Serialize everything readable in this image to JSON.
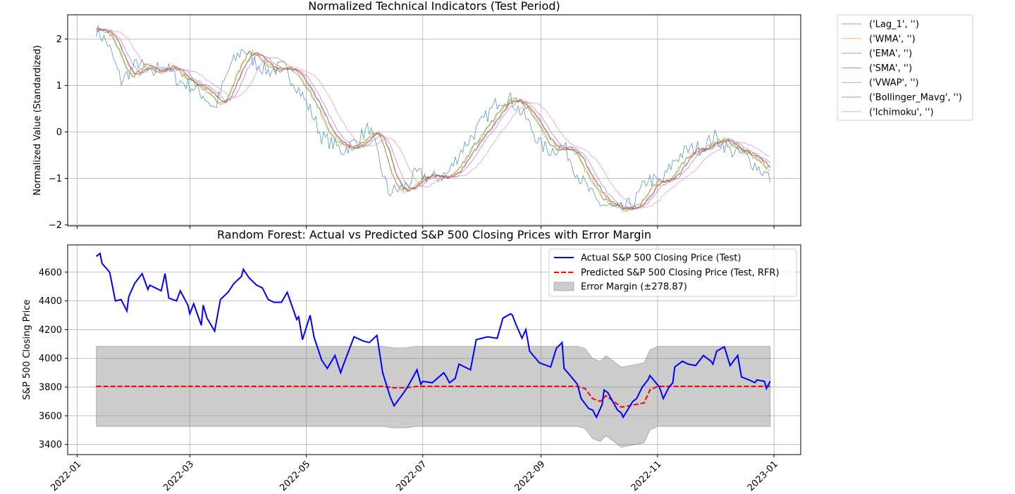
{
  "chart_data": [
    {
      "type": "line",
      "title": "Normalized Technical Indicators (Test Period)",
      "xlabel": "",
      "ylabel": "Normalized Value (Standardized)",
      "xlim": [
        "2021-12-27",
        "2023-01-15"
      ],
      "ylim": [
        -2.02,
        2.52
      ],
      "yticks": [
        -2,
        -1,
        0,
        1,
        2
      ],
      "ytick_labels": [
        "−2",
        "−1",
        "0",
        "1",
        "2"
      ],
      "grid": true,
      "legend_placement": "outside-top-right",
      "series": [
        {
          "name": "('Lag_1', '')",
          "color": "#1f77b4",
          "lag": 0,
          "noise": 0.95,
          "x": [
            "2022-01-11",
            "2022-01-17",
            "2022-01-24",
            "2022-02-02",
            "2022-02-09",
            "2022-02-14",
            "2022-02-23",
            "2022-03-01",
            "2022-03-08",
            "2022-03-14",
            "2022-03-22",
            "2022-03-29",
            "2022-04-04",
            "2022-04-11",
            "2022-04-19",
            "2022-04-26",
            "2022-05-04",
            "2022-05-09",
            "2022-05-20",
            "2022-05-27",
            "2022-06-03",
            "2022-06-13",
            "2022-06-21",
            "2022-06-28",
            "2022-07-06",
            "2022-07-14",
            "2022-07-21",
            "2022-08-01",
            "2022-08-10",
            "2022-08-16",
            "2022-08-24",
            "2022-09-01",
            "2022-09-06",
            "2022-09-13",
            "2022-09-20",
            "2022-09-30",
            "2022-10-06",
            "2022-10-12",
            "2022-10-20",
            "2022-10-27",
            "2022-11-03",
            "2022-11-10",
            "2022-11-16",
            "2022-11-25",
            "2022-12-01",
            "2022-12-09",
            "2022-12-16",
            "2022-12-22",
            "2022-12-30"
          ],
          "values": [
            2.2,
            1.9,
            1.1,
            1.5,
            1.2,
            1.5,
            1.1,
            1.0,
            0.8,
            0.5,
            1.4,
            1.8,
            1.5,
            1.3,
            1.4,
            1.0,
            0.4,
            -0.1,
            -0.4,
            -0.2,
            0.1,
            -1.3,
            -1.2,
            -0.9,
            -1.0,
            -0.9,
            -0.4,
            0.2,
            0.7,
            0.7,
            0.3,
            -0.3,
            -0.4,
            -0.3,
            -0.9,
            -1.5,
            -1.6,
            -1.7,
            -1.5,
            -1.0,
            -1.1,
            -0.6,
            -0.4,
            -0.3,
            -0.1,
            -0.4,
            -0.5,
            -0.7,
            -1.0
          ]
        },
        {
          "name": "('WMA', '')",
          "color": "#ff7f0e",
          "lag": 5,
          "noise": 0.3
        },
        {
          "name": "('EMA', '')",
          "color": "#2ca02c",
          "lag": 5,
          "noise": 0.3
        },
        {
          "name": "('SMA', '')",
          "color": "#d62728",
          "lag": 7,
          "noise": 0.2
        },
        {
          "name": "('VWAP', '')",
          "color": "#9467bd",
          "lag": 9,
          "noise": 0.15
        },
        {
          "name": "('Bollinger_Mavg', '')",
          "color": "#8c564b",
          "lag": 7,
          "noise": 0.2
        },
        {
          "name": "('Ichimoku', '')",
          "color": "#e377c2",
          "lag": 14,
          "noise": 0.1
        }
      ],
      "legend": [
        "('Lag_1', '')",
        "('WMA', '')",
        "('EMA', '')",
        "('SMA', '')",
        "('VWAP', '')",
        "('Bollinger_Mavg', '')",
        "('Ichimoku', '')"
      ]
    },
    {
      "type": "line",
      "title": "Random Forest: Actual vs Predicted S&P 500 Closing Prices with Error Margin",
      "xlabel": "",
      "ylabel": "S&P 500 Closing Price",
      "xlim": [
        "2021-12-27",
        "2023-01-15"
      ],
      "ylim": [
        3330,
        4790
      ],
      "yticks": [
        3400,
        3600,
        3800,
        4000,
        4200,
        4400,
        4600
      ],
      "xticks": [
        "2022-01-01",
        "2022-03-01",
        "2022-05-01",
        "2022-07-01",
        "2022-09-01",
        "2022-11-01",
        "2023-01-01"
      ],
      "xtick_labels": [
        "2022-01",
        "2022-03",
        "2022-05",
        "2022-07",
        "2022-09",
        "2022-11",
        "2023-01"
      ],
      "grid": true,
      "legend_placement": "upper right",
      "error_margin": 278.87,
      "series": [
        {
          "name": "Actual S&P 500 Closing Price (Test)",
          "color": "#0000ff",
          "style": "solid",
          "x": [
            "2022-01-11",
            "2022-01-13",
            "2022-01-14",
            "2022-01-18",
            "2022-01-21",
            "2022-01-24",
            "2022-01-27",
            "2022-01-28",
            "2022-01-31",
            "2022-02-04",
            "2022-02-07",
            "2022-02-08",
            "2022-02-11",
            "2022-02-14",
            "2022-02-16",
            "2022-02-18",
            "2022-02-22",
            "2022-02-24",
            "2022-02-28",
            "2022-03-01",
            "2022-03-03",
            "2022-03-07",
            "2022-03-08",
            "2022-03-10",
            "2022-03-14",
            "2022-03-17",
            "2022-03-21",
            "2022-03-24",
            "2022-03-28",
            "2022-03-29",
            "2022-04-01",
            "2022-04-05",
            "2022-04-08",
            "2022-04-11",
            "2022-04-14",
            "2022-04-18",
            "2022-04-21",
            "2022-04-26",
            "2022-04-27",
            "2022-04-29",
            "2022-05-03",
            "2022-05-05",
            "2022-05-09",
            "2022-05-12",
            "2022-05-16",
            "2022-05-19",
            "2022-05-20",
            "2022-05-26",
            "2022-05-31",
            "2022-06-03",
            "2022-06-07",
            "2022-06-10",
            "2022-06-14",
            "2022-06-16",
            "2022-06-21",
            "2022-06-23",
            "2022-06-28",
            "2022-06-30",
            "2022-07-01",
            "2022-07-06",
            "2022-07-12",
            "2022-07-13",
            "2022-07-15",
            "2022-07-18",
            "2022-07-20",
            "2022-07-26",
            "2022-07-29",
            "2022-08-04",
            "2022-08-09",
            "2022-08-12",
            "2022-08-16",
            "2022-08-17",
            "2022-08-19",
            "2022-08-22",
            "2022-08-24",
            "2022-08-26",
            "2022-08-31",
            "2022-09-06",
            "2022-09-09",
            "2022-09-12",
            "2022-09-13",
            "2022-09-15",
            "2022-09-20",
            "2022-09-22",
            "2022-09-26",
            "2022-09-28",
            "2022-09-30",
            "2022-10-03",
            "2022-10-04",
            "2022-10-06",
            "2022-10-11",
            "2022-10-13",
            "2022-10-14",
            "2022-10-19",
            "2022-10-21",
            "2022-10-24",
            "2022-10-27",
            "2022-10-28",
            "2022-11-02",
            "2022-11-04",
            "2022-11-07",
            "2022-11-09",
            "2022-11-10",
            "2022-11-14",
            "2022-11-17",
            "2022-11-21",
            "2022-11-25",
            "2022-11-29",
            "2022-11-30",
            "2022-12-02",
            "2022-12-06",
            "2022-12-09",
            "2022-12-13",
            "2022-12-15",
            "2022-12-19",
            "2022-12-22",
            "2022-12-23",
            "2022-12-27",
            "2022-12-28",
            "2022-12-30"
          ],
          "values": [
            4710,
            4730,
            4660,
            4600,
            4400,
            4410,
            4330,
            4430,
            4520,
            4590,
            4480,
            4510,
            4490,
            4470,
            4590,
            4420,
            4400,
            4470,
            4370,
            4310,
            4380,
            4230,
            4370,
            4280,
            4190,
            4410,
            4460,
            4520,
            4570,
            4620,
            4560,
            4510,
            4490,
            4410,
            4390,
            4390,
            4460,
            4270,
            4290,
            4130,
            4300,
            4150,
            3990,
            3930,
            4020,
            3900,
            3940,
            4150,
            4120,
            4110,
            4160,
            3900,
            3730,
            3670,
            3760,
            3800,
            3920,
            3820,
            3840,
            3830,
            3900,
            3880,
            3830,
            3860,
            3960,
            3920,
            4130,
            4150,
            4140,
            4280,
            4310,
            4300,
            4230,
            4140,
            4200,
            4050,
            3970,
            3940,
            4070,
            4110,
            3930,
            3900,
            3820,
            3720,
            3650,
            3640,
            3590,
            3680,
            3780,
            3760,
            3640,
            3620,
            3590,
            3700,
            3720,
            3800,
            3850,
            3880,
            3800,
            3720,
            3800,
            3830,
            3940,
            3980,
            3960,
            3950,
            4020,
            3980,
            3960,
            4050,
            4080,
            3950,
            4020,
            3870,
            3850,
            3830,
            3850,
            3840,
            3790,
            3840
          ]
        },
        {
          "name": "Predicted S&P 500 Closing Price (Test, RFR)",
          "color": "#ff0000",
          "style": "dashed",
          "x": [
            "2022-01-11",
            "2022-06-10",
            "2022-06-16",
            "2022-06-22",
            "2022-06-28",
            "2022-09-20",
            "2022-09-24",
            "2022-09-28",
            "2022-10-02",
            "2022-10-05",
            "2022-10-09",
            "2022-10-13",
            "2022-10-17",
            "2022-10-21",
            "2022-10-25",
            "2022-10-28",
            "2022-11-01",
            "2022-12-30"
          ],
          "values": [
            3805,
            3805,
            3795,
            3795,
            3805,
            3805,
            3790,
            3720,
            3700,
            3740,
            3700,
            3660,
            3670,
            3680,
            3690,
            3780,
            3805,
            3805
          ]
        },
        {
          "name": "Error Margin (±278.87)",
          "color": "#7f7f7f",
          "style": "band"
        }
      ],
      "legend": [
        "Actual S&P 500 Closing Price (Test)",
        "Predicted S&P 500 Closing Price (Test, RFR)",
        "Error Margin (±278.87)"
      ]
    }
  ]
}
